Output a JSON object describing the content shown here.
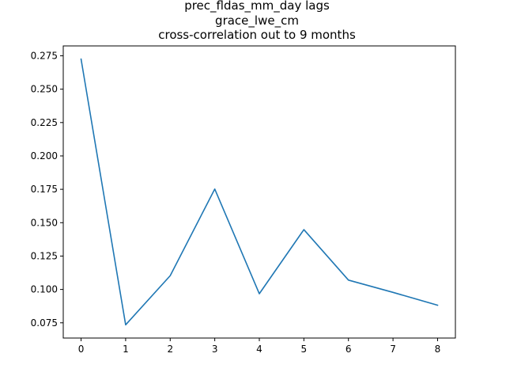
{
  "chart_data": {
    "type": "line",
    "title": [
      "prec_fldas_mm_day lags",
      "grace_lwe_cm",
      "cross-correlation out to 9 months"
    ],
    "xlabel": "",
    "ylabel": "",
    "x": [
      0,
      1,
      2,
      3,
      4,
      5,
      6,
      7,
      8
    ],
    "series": [
      {
        "values": [
          0.2725,
          0.0735,
          0.1103,
          0.1752,
          0.0968,
          0.1448,
          0.107,
          0.0978,
          0.0882
        ],
        "color": "#1f77b4"
      }
    ],
    "xlim": [
      -0.4,
      8.4
    ],
    "ylim": [
      0.0636,
      0.2824
    ],
    "xticks": [
      "0",
      "1",
      "2",
      "3",
      "4",
      "5",
      "6",
      "7",
      "8"
    ],
    "yticks": [
      "0.075",
      "0.100",
      "0.125",
      "0.150",
      "0.175",
      "0.200",
      "0.225",
      "0.250",
      "0.275"
    ],
    "grid": false
  }
}
